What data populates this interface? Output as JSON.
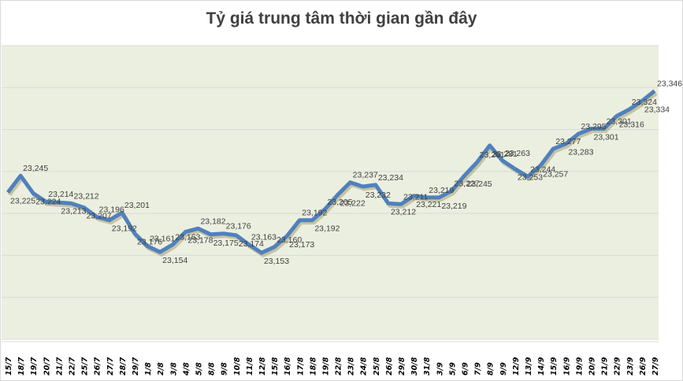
{
  "chart_data": {
    "type": "line",
    "title": "Tỷ giá trung tâm thời gian gần đây",
    "xlabel": "",
    "ylabel": "",
    "ylim": [
      23050,
      23400
    ],
    "grid": true,
    "legend": null,
    "categories": [
      "15/7",
      "18/7",
      "19/7",
      "20/7",
      "21/7",
      "22/7",
      "25/7",
      "26/7",
      "27/7",
      "28/7",
      "29/7",
      "1/8",
      "2/8",
      "3/8",
      "4/8",
      "5/8",
      "8/8",
      "9/8",
      "10/8",
      "11/8",
      "12/8",
      "15/8",
      "16/8",
      "17/8",
      "18/8",
      "19/8",
      "22/8",
      "23/8",
      "24/8",
      "25/8",
      "26/8",
      "29/8",
      "30/8",
      "31/8",
      "3/9",
      "5/9",
      "6/9",
      "7/9",
      "8/9",
      "9/9",
      "12/9",
      "13/9",
      "14/9",
      "15/9",
      "16/9",
      "19/9",
      "20/9",
      "21/9",
      "22/9",
      "23/9",
      "26/9",
      "27/9"
    ],
    "series": [
      {
        "name": "Tỷ giá trung tâm",
        "color": "#4F81BD",
        "values": [
          23225,
          23245,
          23224,
          23214,
          23213,
          23212,
          23207,
          23196,
          23192,
          23201,
          23176,
          23161,
          23154,
          23163,
          23178,
          23182,
          23175,
          23176,
          23174,
          23163,
          23153,
          23160,
          23173,
          23192,
          23192,
          23205,
          23222,
          23237,
          23232,
          23234,
          23212,
          23211,
          23221,
          23219,
          23219,
          23227,
          23245,
          23261,
          23281,
          23263,
          23253,
          23244,
          23257,
          23277,
          23283,
          23295,
          23301,
          23301,
          23316,
          23324,
          23334,
          23346
        ]
      }
    ]
  },
  "style": {
    "plot_bg": "#EBEFDF",
    "grid": "#D9D9D9",
    "line": "#4F81BD"
  }
}
